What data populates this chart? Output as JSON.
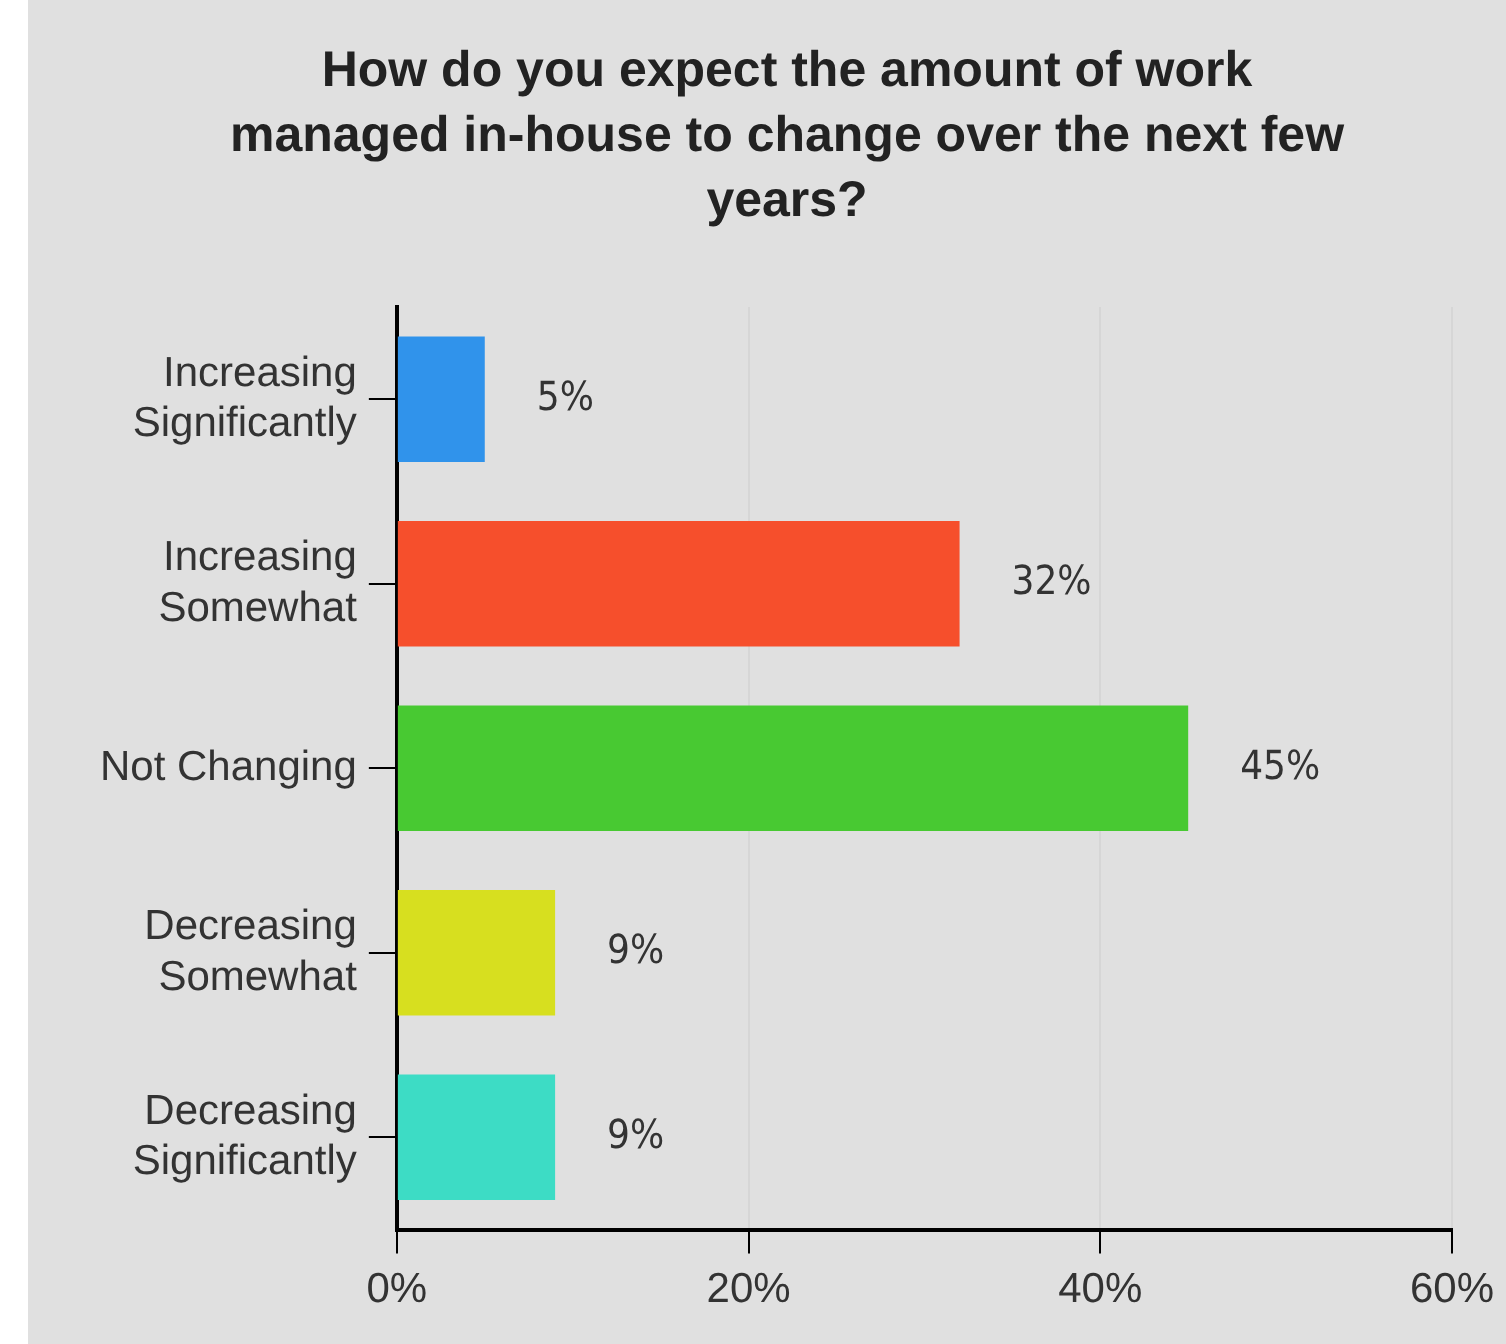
{
  "chart_data": {
    "type": "bar",
    "orientation": "horizontal",
    "title": "How do you expect the amount of work managed in-house to change over the next few years?",
    "categories": [
      "Increasing Significantly",
      "Increasing Somewhat",
      "Not Changing",
      "Decreasing Somewhat",
      "Decreasing Significantly"
    ],
    "values": [
      5,
      32,
      45,
      9,
      9
    ],
    "colors": [
      "#3093eb",
      "#f64f2c",
      "#48c932",
      "#d7df1f",
      "#3ddcc5"
    ],
    "value_labels": [
      "5%",
      "32%",
      "45%",
      "9%",
      "9%"
    ],
    "xlim": [
      0,
      60
    ],
    "xticks": [
      {
        "value": 0,
        "label": "0%"
      },
      {
        "value": 20,
        "label": "20%"
      },
      {
        "value": 40,
        "label": "40%"
      },
      {
        "value": 60,
        "label": "60%"
      }
    ],
    "grid": "x",
    "legend": false
  }
}
